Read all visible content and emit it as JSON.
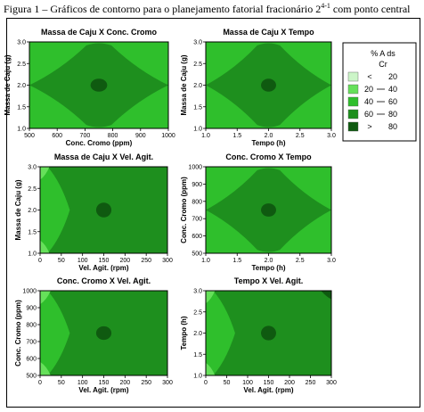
{
  "figure_title": {
    "prefix": "Figura 1 – Gráficos de contorno para o planejamento fatorial fracionário 2",
    "superscript": "4-1",
    "suffix": " com ponto central"
  },
  "colors": {
    "lt20": "#ccf5c8",
    "b20_40": "#66e05a",
    "b40_60": "#2fbf2c",
    "b60_80": "#1e8f1e",
    "gt80": "#0f5a10"
  },
  "legend": {
    "title_line1": "% A ds",
    "title_line2": "Cr",
    "entries": [
      {
        "op": "<",
        "lo": "",
        "hi": "20",
        "color_key": "lt20"
      },
      {
        "op": "",
        "lo": "20",
        "hi": "40",
        "color_key": "b20_40"
      },
      {
        "op": "",
        "lo": "40",
        "hi": "60",
        "color_key": "b40_60"
      },
      {
        "op": "",
        "lo": "60",
        "hi": "80",
        "color_key": "b60_80"
      },
      {
        "op": ">",
        "lo": "",
        "hi": "80",
        "color_key": "gt80"
      }
    ]
  },
  "chart_data": [
    {
      "type": "heatmap",
      "title": "Massa de Caju X Conc. Cromo",
      "xlabel": "Conc. Cromo (ppm)",
      "ylabel": "Massa de Caju (g)",
      "xlim": [
        500,
        1000
      ],
      "ylim": [
        1.0,
        3.0
      ],
      "xticks": [
        "500",
        "600",
        "700",
        "800",
        "900",
        "1000"
      ],
      "yticks": [
        "1.0",
        "1.5",
        "2.0",
        "2.5",
        "3.0"
      ],
      "regions": [
        {
          "level": "40-60",
          "shape": "background"
        },
        {
          "level": "60-80",
          "shape": "diamond",
          "center": [
            750,
            2.0
          ],
          "half_width": 250,
          "half_height": 1.0
        },
        {
          "level": ">80",
          "shape": "ellipse",
          "center": [
            750,
            2.0
          ],
          "rx": 30,
          "ry": 0.15
        }
      ]
    },
    {
      "type": "heatmap",
      "title": "Massa de Caju X Tempo",
      "xlabel": "Tempo (h)",
      "ylabel": "Massa de Caju (g)",
      "xlim": [
        1.0,
        3.0
      ],
      "ylim": [
        1.0,
        3.0
      ],
      "xticks": [
        "1.0",
        "1.5",
        "2.0",
        "2.5",
        "3.0"
      ],
      "yticks": [
        "1.0",
        "1.5",
        "2.0",
        "2.5",
        "3.0"
      ],
      "regions": [
        {
          "level": "40-60",
          "shape": "background"
        },
        {
          "level": "60-80",
          "shape": "diamond",
          "center": [
            2.0,
            2.0
          ],
          "half_width": 1.0,
          "half_height": 1.0
        },
        {
          "level": ">80",
          "shape": "ellipse",
          "center": [
            2.0,
            2.0
          ],
          "rx": 0.12,
          "ry": 0.15
        }
      ]
    },
    {
      "type": "heatmap",
      "title": "Massa de Caju X Vel. Agit.",
      "xlabel": "Vel. Agit. (rpm)",
      "ylabel": "Massa de Caju (g)",
      "xlim": [
        0,
        300
      ],
      "ylim": [
        1.0,
        3.0
      ],
      "xticks": [
        "0",
        "50",
        "100",
        "150",
        "200",
        "250",
        "300"
      ],
      "yticks": [
        "1.0",
        "1.5",
        "2.0",
        "2.5",
        "3.0"
      ],
      "regions": [
        {
          "level": "60-80",
          "shape": "background"
        },
        {
          "level": "40-60",
          "shape": "wedge-left",
          "tip_x": 70,
          "y_mid": 2.0
        },
        {
          "level": "20-40",
          "shape": "corner",
          "corners": [
            "top-left",
            "bottom-left"
          ],
          "size_x": 22,
          "size_y": 0.3
        },
        {
          "level": ">80",
          "shape": "ellipse",
          "center": [
            150,
            2.0
          ],
          "rx": 18,
          "ry": 0.17
        }
      ]
    },
    {
      "type": "heatmap",
      "title": "Conc. Cromo X Tempo",
      "xlabel": "Tempo (h)",
      "ylabel": "Conc. Cromo (ppm)",
      "xlim": [
        1.0,
        3.0
      ],
      "ylim": [
        500,
        1000
      ],
      "xticks": [
        "1.0",
        "1.5",
        "2.0",
        "2.5",
        "3.0"
      ],
      "yticks": [
        "500",
        "600",
        "700",
        "800",
        "900",
        "1000"
      ],
      "regions": [
        {
          "level": "40-60",
          "shape": "background"
        },
        {
          "level": "60-80",
          "shape": "diamond",
          "center": [
            2.0,
            750
          ],
          "half_width": 1.0,
          "half_height": 250
        },
        {
          "level": ">80",
          "shape": "ellipse",
          "center": [
            2.0,
            750
          ],
          "rx": 0.12,
          "ry": 38
        }
      ]
    },
    {
      "type": "heatmap",
      "title": "Conc. Cromo X Vel. Agit.",
      "xlabel": "Vel. Agit. (rpm)",
      "ylabel": "Conc. Cromo (ppm)",
      "xlim": [
        0,
        300
      ],
      "ylim": [
        500,
        1000
      ],
      "xticks": [
        "0",
        "50",
        "100",
        "150",
        "200",
        "250",
        "300"
      ],
      "yticks": [
        "500",
        "600",
        "700",
        "800",
        "900",
        "1000"
      ],
      "regions": [
        {
          "level": "60-80",
          "shape": "background"
        },
        {
          "level": "40-60",
          "shape": "wedge-left",
          "tip_x": 70,
          "y_mid": 750
        },
        {
          "level": "20-40",
          "shape": "corner",
          "corners": [
            "top-left",
            "bottom-left"
          ],
          "size_x": 25,
          "size_y": 80
        },
        {
          "level": ">80",
          "shape": "ellipse",
          "center": [
            150,
            750
          ],
          "rx": 18,
          "ry": 40
        }
      ]
    },
    {
      "type": "heatmap",
      "title": "Tempo X Vel. Agit.",
      "xlabel": "Vel. Agit. (rpm)",
      "ylabel": "Tempo (h)",
      "xlim": [
        0,
        300
      ],
      "ylim": [
        1.0,
        3.0
      ],
      "xticks": [
        "0",
        "50",
        "100",
        "150",
        "200",
        "250",
        "300"
      ],
      "yticks": [
        "1.0",
        "1.5",
        "2.0",
        "2.5",
        "3.0"
      ],
      "regions": [
        {
          "level": "60-80",
          "shape": "background"
        },
        {
          "level": "40-60",
          "shape": "wedge-left",
          "tip_x": 70,
          "y_mid": 2.0
        },
        {
          "level": "20-40",
          "shape": "corner",
          "corners": [
            "top-left",
            "bottom-left"
          ],
          "size_x": 22,
          "size_y": 0.3
        },
        {
          "level": ">80",
          "shape": "ellipse",
          "center": [
            150,
            2.0
          ],
          "rx": 18,
          "ry": 0.17
        },
        {
          "level": ">80",
          "shape": "corner",
          "corners": [
            "top-right"
          ],
          "size_x": 25,
          "size_y": 0.2
        }
      ]
    }
  ]
}
